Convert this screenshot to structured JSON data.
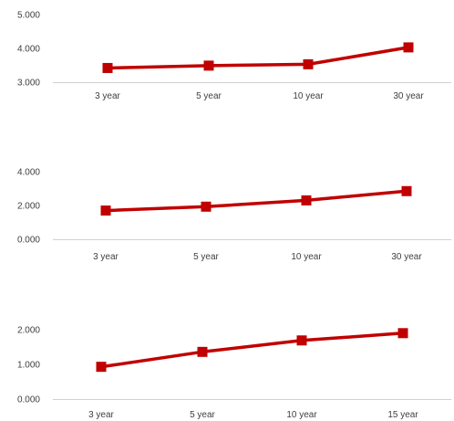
{
  "chart_data": [
    {
      "type": "line",
      "categories": [
        "3 year",
        "5 year",
        "10 year",
        "30 year"
      ],
      "yticks": [
        "3.000",
        "4.000",
        "5.000"
      ],
      "ylim": [
        3,
        5
      ],
      "values": [
        3.42,
        3.49,
        3.53,
        4.03
      ],
      "grid": false,
      "legend": "none",
      "color": "#C00000"
    },
    {
      "type": "line",
      "categories": [
        "3 year",
        "5 year",
        "10 year",
        "30 year"
      ],
      "yticks": [
        "0.000",
        "2.000",
        "4.000"
      ],
      "ylim": [
        0,
        4
      ],
      "values": [
        1.7,
        1.93,
        2.3,
        2.85
      ],
      "grid": false,
      "legend": "none",
      "color": "#C00000"
    },
    {
      "type": "line",
      "categories": [
        "3 year",
        "5 year",
        "10 year",
        "15 year"
      ],
      "yticks": [
        "0.000",
        "1.000",
        "2.000"
      ],
      "ylim": [
        0,
        2
      ],
      "values": [
        0.93,
        1.36,
        1.69,
        1.9
      ],
      "grid": false,
      "legend": "none",
      "color": "#C00000"
    }
  ]
}
